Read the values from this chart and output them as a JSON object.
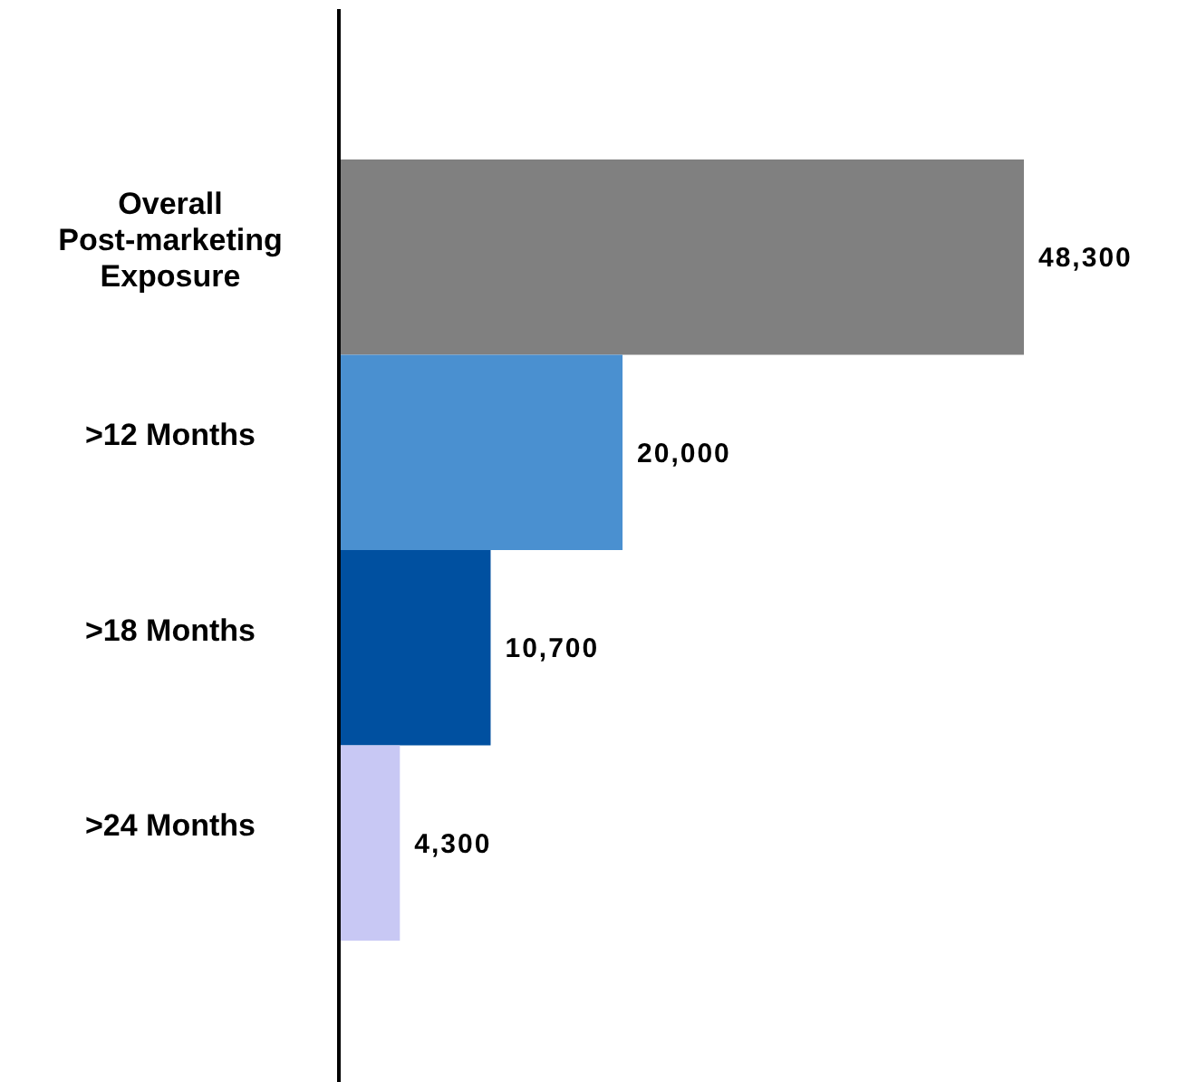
{
  "chart_data": {
    "type": "bar",
    "orientation": "horizontal",
    "categories": [
      "Overall Post-marketing Exposure",
      ">12 Months",
      ">18 Months",
      ">24 Months"
    ],
    "values": [
      48300,
      20000,
      10700,
      4300
    ],
    "colors": [
      "#808080",
      "#4a90d0",
      "#0050a0",
      "#c8c8f4"
    ],
    "value_labels": [
      "48,300",
      "20,000",
      "10,700",
      "4,300"
    ],
    "tick_labels": "y"
  }
}
